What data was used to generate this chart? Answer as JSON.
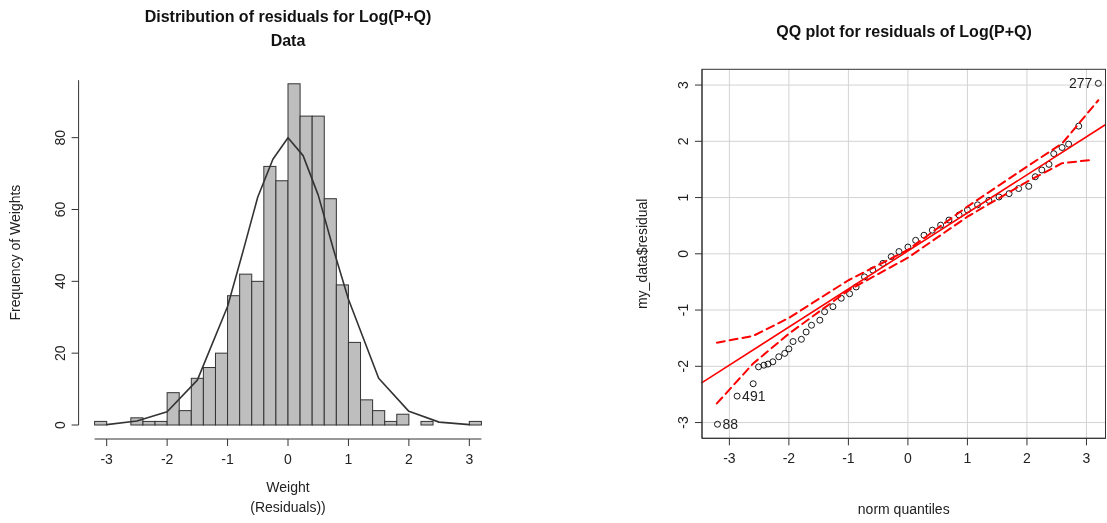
{
  "chart_data": [
    {
      "type": "histogram",
      "title": "Distribution of residuals for Log(P+Q)",
      "subtitle": "Data",
      "xlabel": "Weight\n(Residuals))",
      "ylabel": "Frequency of Weights",
      "bins": [
        -3.2,
        -3.0,
        -2.8,
        -2.6,
        -2.4,
        -2.2,
        -2.0,
        -1.8,
        -1.6,
        -1.4,
        -1.2,
        -1.0,
        -0.8,
        -0.6,
        -0.4,
        -0.2,
        0,
        0.2,
        0.4,
        0.6,
        0.8,
        1.0,
        1.2,
        1.4,
        1.6,
        1.8,
        2.0,
        2.2,
        2.4,
        2.6,
        2.8,
        3.0,
        3.2
      ],
      "values": [
        1,
        0,
        0,
        2,
        1,
        1,
        9,
        4,
        13,
        16,
        20,
        36,
        42,
        40,
        72,
        68,
        95,
        86,
        86,
        63,
        39,
        23,
        7,
        4,
        1,
        3,
        0,
        1,
        0,
        0,
        0,
        1
      ],
      "color": "#bebebe",
      "series": [
        {
          "type": "line",
          "color": "#333333",
          "x": [
            -3,
            -2.5,
            -2,
            -1.5,
            -1,
            -0.75,
            -0.5,
            -0.25,
            0,
            0.25,
            0.5,
            0.75,
            1,
            1.5,
            2,
            2.5,
            3
          ],
          "values": [
            0.1,
            1.1,
            3.7,
            12.5,
            33,
            48,
            63.5,
            74,
            80,
            75,
            64,
            49,
            35,
            13,
            3.8,
            0.8,
            0.1
          ]
        }
      ],
      "xlim": [
        -3.2,
        3.2
      ],
      "ylim": [
        0,
        96
      ],
      "xticks": [
        -3,
        -2,
        -1,
        0,
        1,
        2,
        3
      ],
      "yticks": [
        0,
        20,
        40,
        60,
        80
      ],
      "grid": false
    },
    {
      "type": "scatter",
      "title": "QQ plot for residuals of Log(P+Q)",
      "xlabel": "norm quantiles",
      "ylabel": "my_data$residual",
      "marker": "circle",
      "color": "#000000",
      "x": [
        -3.2,
        -2.87,
        -2.6,
        -2.51,
        -2.42,
        -2.35,
        -2.27,
        -2.17,
        -2.07,
        -2.0,
        -1.93,
        -1.79,
        -1.71,
        -1.62,
        -1.48,
        -1.4,
        -1.26,
        -1.12,
        -0.98,
        -0.87,
        -0.73,
        -0.59,
        -0.42,
        -0.28,
        -0.15,
        0,
        0.13,
        0.27,
        0.41,
        0.55,
        0.69,
        0.86,
        1.0,
        1.17,
        1.36,
        1.53,
        1.7,
        1.86,
        2.03,
        2.14,
        2.25,
        2.37,
        2.45,
        2.59,
        2.7,
        2.87,
        3.2
      ],
      "values": [
        -3.03,
        -2.53,
        -2.31,
        -2.01,
        -1.98,
        -1.96,
        -1.92,
        -1.83,
        -1.77,
        -1.69,
        -1.56,
        -1.52,
        -1.39,
        -1.27,
        -1.18,
        -1.03,
        -0.94,
        -0.79,
        -0.71,
        -0.59,
        -0.41,
        -0.29,
        -0.17,
        -0.05,
        0.04,
        0.12,
        0.24,
        0.33,
        0.42,
        0.51,
        0.6,
        0.69,
        0.78,
        0.87,
        0.95,
        1.01,
        1.07,
        1.16,
        1.2,
        1.37,
        1.49,
        1.59,
        1.78,
        1.89,
        1.95,
        2.27,
        3.03
      ],
      "series": [
        {
          "type": "line",
          "marker": "none",
          "color": "#ff0000",
          "x": [
            -3.46,
            3.31
          ],
          "values": [
            -2.29,
            2.29
          ]
        },
        {
          "type": "line",
          "marker": "none",
          "color": "#ff0000",
          "line_style": "dashed",
          "x": [
            -3.21,
            -2.6,
            -2.0,
            -1.0,
            0,
            1.0,
            2.0,
            2.59,
            3.2
          ],
          "values": [
            -1.58,
            -1.46,
            -1.14,
            -0.47,
            0.07,
            0.84,
            1.55,
            1.96,
            2.73
          ]
        },
        {
          "type": "line",
          "marker": "none",
          "color": "#ff0000",
          "line_style": "dashed",
          "x": [
            -3.21,
            -2.6,
            -2.0,
            -1.0,
            0,
            1.0,
            2.0,
            2.59,
            3.09
          ],
          "values": [
            -2.66,
            -1.95,
            -1.42,
            -0.65,
            -0.07,
            0.66,
            1.28,
            1.61,
            1.67
          ]
        }
      ],
      "annotations": [
        {
          "text": "277",
          "x": 3.2,
          "y": 3.03
        },
        {
          "text": "491",
          "x": -2.87,
          "y": -2.53
        },
        {
          "text": "88",
          "x": -3.2,
          "y": -3.03
        }
      ],
      "xlim": [
        -3.46,
        3.32
      ],
      "ylim": [
        -3.28,
        3.28
      ],
      "xticks": [
        -3,
        -2,
        -1,
        0,
        1,
        2,
        3
      ],
      "yticks": [
        -3,
        -2,
        -1,
        0,
        1,
        2,
        3
      ],
      "grid": true
    }
  ]
}
